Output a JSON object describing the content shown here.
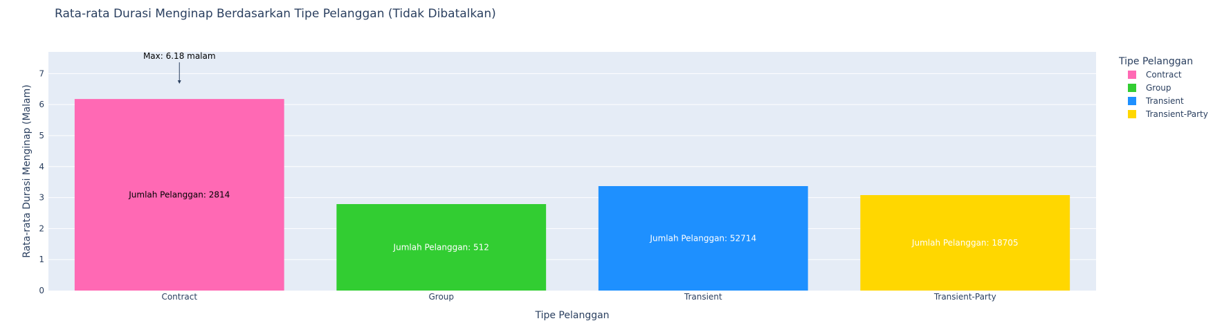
{
  "chart_data": {
    "type": "bar",
    "title": "Rata-rata Durasi Menginap Berdasarkan Tipe Pelanggan (Tidak Dibatalkan)",
    "xlabel": "Tipe Pelanggan",
    "ylabel": "Rata-rata Durasi Menginap (Malam)",
    "ylim": [
      0,
      7.7
    ],
    "yticks": [
      0,
      1,
      2,
      3,
      4,
      5,
      6,
      7
    ],
    "grid": true,
    "categories": [
      "Contract",
      "Group",
      "Transient",
      "Transient-Party"
    ],
    "values": [
      6.18,
      2.79,
      3.37,
      3.08
    ],
    "colors": [
      "#ff69b4",
      "#32cd32",
      "#1e90ff",
      "#ffd700"
    ],
    "bar_labels": [
      "Jumlah Pelanggan: 2814",
      "Jumlah Pelanggan: 512",
      "Jumlah Pelanggan: 52714",
      "Jumlah Pelanggan: 18705"
    ],
    "bar_label_colors": [
      "#000000",
      "#ffffff",
      "#ffffff",
      "#ffffff"
    ],
    "legend": {
      "title": "Tipe Pelanggan",
      "placement": "right",
      "entries": [
        "Contract",
        "Group",
        "Transient",
        "Transient-Party"
      ]
    },
    "annotation": {
      "text": "Max: 6.18 malam",
      "category": "Contract",
      "value": 6.18
    },
    "plot_bg": "#e5ecf6"
  }
}
